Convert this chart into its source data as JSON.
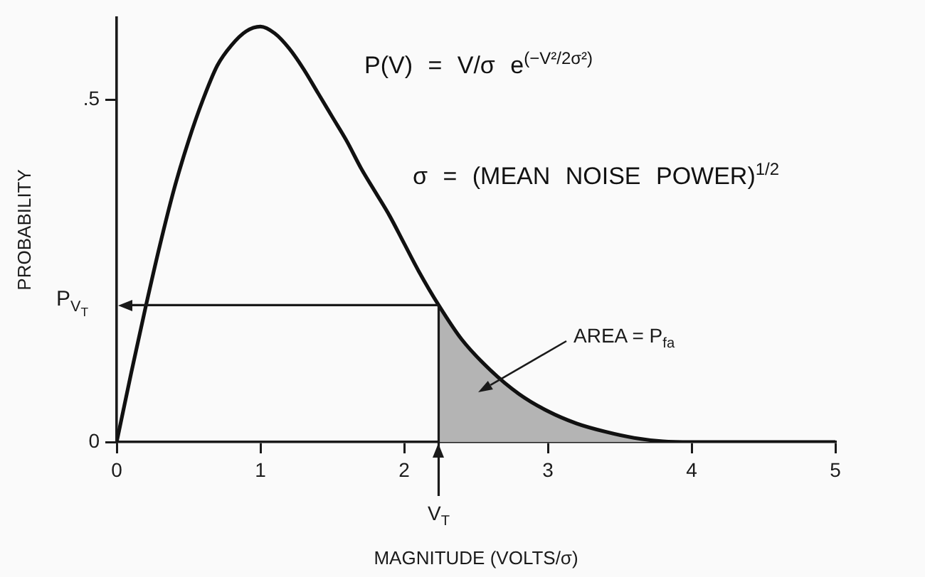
{
  "chart_data": {
    "type": "line",
    "xlabel": "MAGNITUDE (VOLTS/σ)",
    "ylabel": "PROBABILITY",
    "x": [
      0,
      0.1,
      0.2,
      0.3,
      0.4,
      0.5,
      0.6,
      0.7,
      0.8,
      0.9,
      1,
      1.1,
      1.2,
      1.3,
      1.4,
      1.5,
      1.6,
      1.7,
      1.8,
      1.9,
      2,
      2.1,
      2.24,
      2.4,
      2.6,
      2.8,
      3,
      3.2,
      3.4,
      3.6,
      3.8,
      4,
      5
    ],
    "series": [
      {
        "color": "#111111",
        "values": [
          0,
          0.1,
          0.196,
          0.287,
          0.37,
          0.44,
          0.5,
          0.55,
          0.58,
          0.6,
          0.607,
          0.597,
          0.575,
          0.545,
          0.51,
          0.475,
          0.44,
          0.4,
          0.365,
          0.33,
          0.29,
          0.25,
          0.2,
          0.15,
          0.105,
          0.07,
          0.045,
          0.027,
          0.015,
          0.006,
          0.001,
          0,
          0
        ]
      },
      {
        "type": "area",
        "color": "#b4b4b4",
        "x": [
          2.24,
          2.4,
          2.6,
          2.8,
          3,
          3.2,
          3.4,
          3.6,
          3.8,
          4
        ],
        "values": [
          0.2,
          0.15,
          0.105,
          0.07,
          0.045,
          0.027,
          0.015,
          0.006,
          0.001,
          0
        ]
      }
    ],
    "xlim": [
      0,
      5
    ],
    "ylim": [
      0,
      0.62
    ],
    "xticks": [
      0,
      1,
      2,
      3,
      4,
      5
    ],
    "yticks": [
      0,
      {
        "value": 0.5,
        "label": ".5"
      }
    ],
    "grid": false,
    "legend": false,
    "marker": "none",
    "line_style": "solid",
    "ref_lines": [
      {
        "axis": "x",
        "value": 2.24,
        "label": "V$_{T}$"
      },
      {
        "axis": "y",
        "value": 0.2,
        "label": "P$_{V}$$_{T}$"
      }
    ],
    "annotations": [
      "P(V) = V/σ e$^{(−V²/2σ²)}$",
      "σ = (MEAN NOISE POWER)$^{1/2}$",
      "AREA = P$_{fa}$"
    ]
  }
}
